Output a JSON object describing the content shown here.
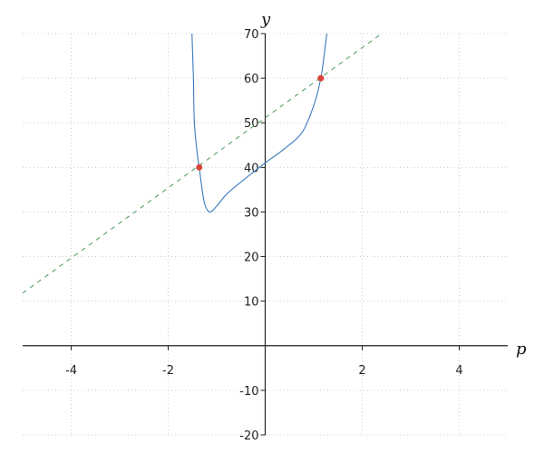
{
  "chart_data": {
    "type": "line",
    "xlabel": "p",
    "ylabel": "y",
    "xlim": [
      -5,
      5
    ],
    "ylim": [
      -20,
      70
    ],
    "grid": true,
    "x_ticks": [
      -4,
      -2,
      2,
      4
    ],
    "y_ticks": [
      -20,
      -10,
      10,
      20,
      30,
      40,
      50,
      60,
      70
    ],
    "x_tick_labels": [
      "-4",
      "-2",
      "2",
      "4"
    ],
    "y_tick_labels": [
      "-20",
      "-10",
      "10",
      "20",
      "30",
      "40",
      "50",
      "60",
      "70"
    ],
    "curve": {
      "color": "#3a7abf",
      "points": [
        [
          -1.51,
          70
        ],
        [
          -1.48,
          60
        ],
        [
          -1.46,
          50
        ],
        [
          -1.4,
          43
        ],
        [
          -1.36,
          40
        ],
        [
          -1.3,
          35
        ],
        [
          -1.24,
          31.5
        ],
        [
          -1.14,
          30
        ],
        [
          -1.0,
          31.3
        ],
        [
          -0.785,
          34.1
        ],
        [
          -0.41,
          37.5
        ],
        [
          0,
          41
        ],
        [
          0.4,
          44.2
        ],
        [
          0.77,
          48
        ],
        [
          1.02,
          54.5
        ],
        [
          1.146,
          60
        ],
        [
          1.21,
          64.7
        ],
        [
          1.27,
          70
        ]
      ]
    },
    "line": {
      "color": "#4a9a5a",
      "style": "dashed",
      "points": [
        [
          -5,
          11.8
        ],
        [
          2.4,
          70
        ]
      ]
    },
    "intersections": {
      "color": "#d9443a",
      "points": [
        [
          -1.36,
          40
        ],
        [
          1.146,
          60
        ]
      ]
    }
  }
}
